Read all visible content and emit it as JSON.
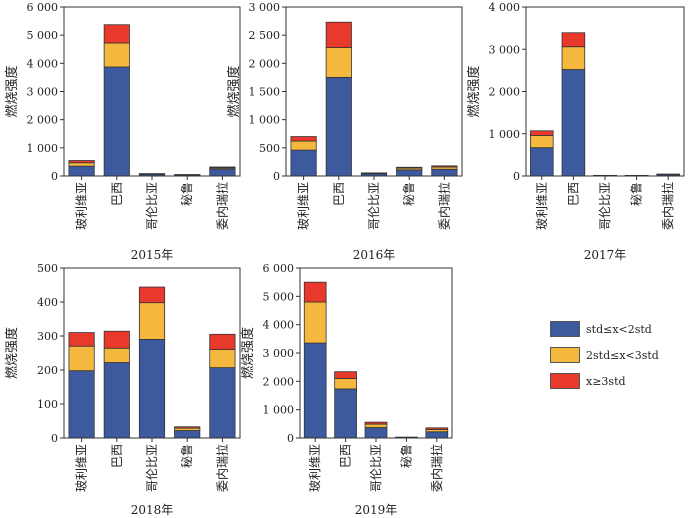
{
  "colors": {
    "s1": "#3d5a9e",
    "s2": "#f4b83f",
    "s3": "#e8392c"
  },
  "legend": [
    {
      "label": "std≤x<2std",
      "color": "#3d5a9e"
    },
    {
      "label": "2std≤x<3std",
      "color": "#f4b83f"
    },
    {
      "label": "x≥3std",
      "color": "#e8392c"
    }
  ],
  "chart_data": [
    {
      "type": "bar",
      "stacked": true,
      "title": "2015年",
      "ylabel": "燃烧强度",
      "categories": [
        "玻利维亚",
        "巴西",
        "哥伦比亚",
        "秘鲁",
        "委内瑞拉"
      ],
      "ylim": [
        0,
        6000
      ],
      "yticks": [
        0,
        1000,
        2000,
        3000,
        4000,
        5000,
        6000
      ],
      "ytick_labels": [
        "0",
        "1 000",
        "2 000",
        "3 000",
        "4 000",
        "5 000",
        "6 000"
      ],
      "series": [
        {
          "name": "std≤x<2std",
          "values": [
            350,
            3870,
            60,
            40,
            250
          ]
        },
        {
          "name": "2std≤x<3std",
          "values": [
            120,
            850,
            15,
            5,
            40
          ]
        },
        {
          "name": "x≥3std",
          "values": [
            80,
            650,
            10,
            5,
            30
          ]
        }
      ]
    },
    {
      "type": "bar",
      "stacked": true,
      "title": "2016年",
      "ylabel": "燃烧强度",
      "categories": [
        "玻利维亚",
        "巴西",
        "哥伦比亚",
        "秘鲁",
        "委内瑞拉"
      ],
      "ylim": [
        0,
        3000
      ],
      "yticks": [
        0,
        500,
        1000,
        1500,
        2000,
        2500,
        3000
      ],
      "ytick_labels": [
        "0",
        "500",
        "1 000",
        "1 500",
        "2 000",
        "2 500",
        "3 000"
      ],
      "series": [
        {
          "name": "std≤x<2std",
          "values": [
            460,
            1750,
            40,
            110,
            120
          ]
        },
        {
          "name": "2std≤x<3std",
          "values": [
            160,
            530,
            10,
            30,
            40
          ]
        },
        {
          "name": "x≥3std",
          "values": [
            80,
            450,
            5,
            15,
            20
          ]
        }
      ]
    },
    {
      "type": "bar",
      "stacked": true,
      "title": "2017年",
      "ylabel": "燃烧强度",
      "categories": [
        "玻利维亚",
        "巴西",
        "哥伦比亚",
        "秘鲁",
        "委内瑞拉"
      ],
      "ylim": [
        0,
        4000
      ],
      "yticks": [
        0,
        1000,
        2000,
        3000,
        4000
      ],
      "ytick_labels": [
        "0",
        "1 000",
        "2 000",
        "3 000",
        "4 000"
      ],
      "series": [
        {
          "name": "std≤x<2std",
          "values": [
            670,
            2520,
            10,
            10,
            30
          ]
        },
        {
          "name": "2std≤x<3std",
          "values": [
            290,
            540,
            3,
            3,
            10
          ]
        },
        {
          "name": "x≥3std",
          "values": [
            110,
            330,
            2,
            2,
            5
          ]
        }
      ]
    },
    {
      "type": "bar",
      "stacked": true,
      "title": "2018年",
      "ylabel": "燃烧强度",
      "categories": [
        "玻利维亚",
        "巴西",
        "哥伦比亚",
        "秘鲁",
        "委内瑞拉"
      ],
      "ylim": [
        0,
        500
      ],
      "yticks": [
        0,
        100,
        200,
        300,
        400,
        500
      ],
      "ytick_labels": [
        "0",
        "100",
        "200",
        "300",
        "400",
        "500"
      ],
      "series": [
        {
          "name": "std≤x<2std",
          "values": [
            198,
            222,
            290,
            22,
            207
          ]
        },
        {
          "name": "2std≤x<3std",
          "values": [
            72,
            42,
            108,
            7,
            53
          ]
        },
        {
          "name": "x≥3std",
          "values": [
            40,
            50,
            46,
            4,
            45
          ]
        }
      ]
    },
    {
      "type": "bar",
      "stacked": true,
      "title": "2019年",
      "ylabel": "燃烧强度",
      "categories": [
        "玻利维亚",
        "巴西",
        "哥伦比亚",
        "秘鲁",
        "委内瑞拉"
      ],
      "ylim": [
        0,
        6000
      ],
      "yticks": [
        0,
        1000,
        2000,
        3000,
        4000,
        5000,
        6000
      ],
      "ytick_labels": [
        "0",
        "1 000",
        "2 000",
        "3 000",
        "4 000",
        "5 000",
        "6 000"
      ],
      "series": [
        {
          "name": "std≤x<2std",
          "values": [
            3350,
            1730,
            370,
            20,
            220
          ]
        },
        {
          "name": "2std≤x<3std",
          "values": [
            1450,
            370,
            120,
            5,
            80
          ]
        },
        {
          "name": "x≥3std",
          "values": [
            700,
            240,
            70,
            5,
            60
          ]
        }
      ]
    }
  ]
}
